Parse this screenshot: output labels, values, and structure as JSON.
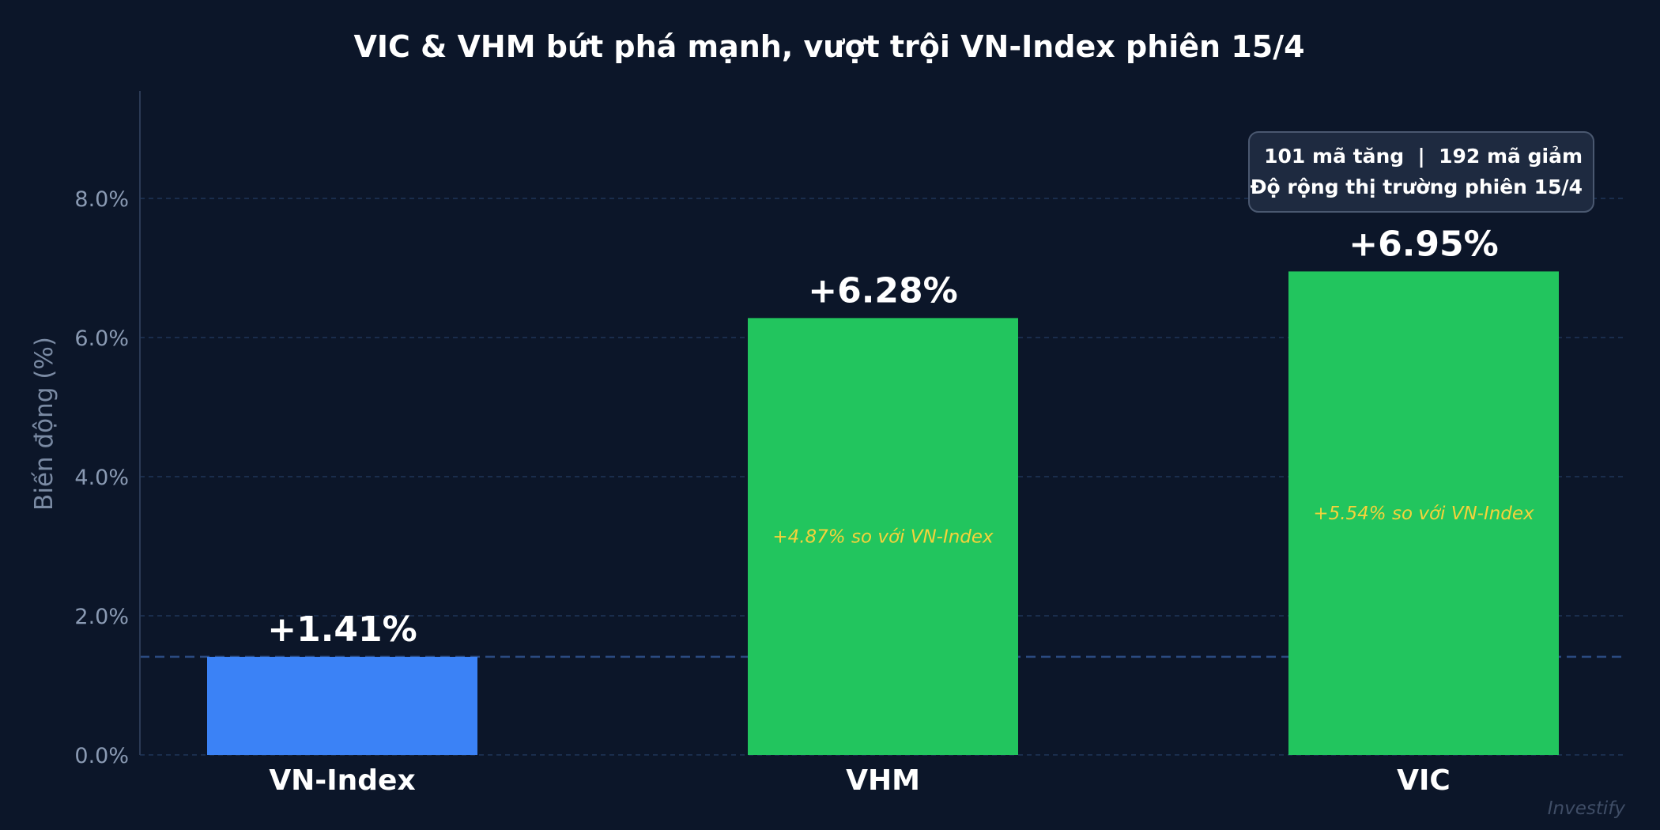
{
  "chart_data": {
    "type": "bar",
    "title": "VIC & VHM bứt phá mạnh, vượt trội VN-Index phiên 15/4",
    "ylabel": "Biến động (%)",
    "xlabel": "",
    "categories": [
      "VN-Index",
      "VHM",
      "VIC"
    ],
    "values": [
      1.41,
      6.28,
      6.95
    ],
    "value_labels": [
      "+1.41%",
      "+6.28%",
      "+6.95%"
    ],
    "comparison_labels": [
      "",
      "+4.87% so với VN-Index",
      "+5.54% so với VN-Index"
    ],
    "bar_colors": [
      "#3b82f6",
      "#22c55e",
      "#22c55e"
    ],
    "ylim": [
      0,
      9.4
    ],
    "yticks": [
      0,
      2,
      4,
      6,
      8
    ],
    "ytick_labels": [
      "0.0%",
      "2.0%",
      "4.0%",
      "6.0%",
      "8.0%"
    ],
    "reference_line": 1.41,
    "grid": true,
    "info_box": {
      "line1": "101 mã tăng  |  192 mã giảm",
      "line2": "Độ rộng thị trường phiên 15/4",
      "position": "top-right"
    },
    "watermark": "Investify"
  },
  "colors": {
    "background": "#0c1629",
    "grid": "#1f3558",
    "reference_line": "#2a4a80",
    "axis": "#2b3a55",
    "comparison_text": "#f5d33b",
    "info_box_fill": "#1e2a40",
    "info_box_border": "#4a5870"
  }
}
